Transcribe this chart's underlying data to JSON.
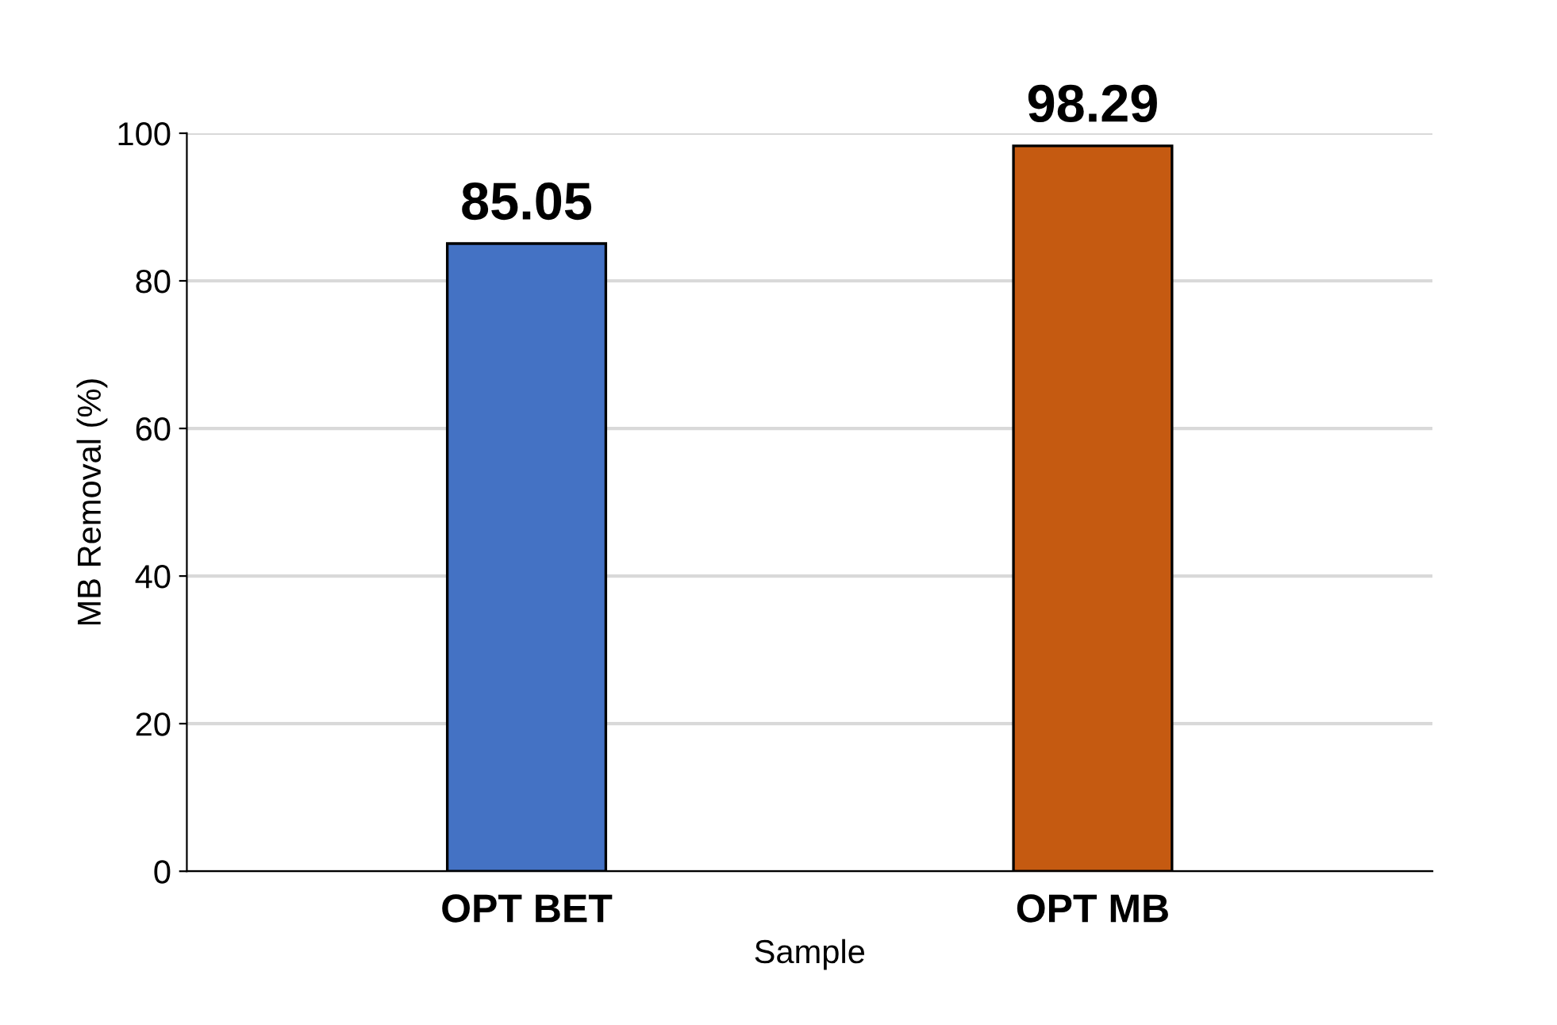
{
  "chart_data": {
    "type": "bar",
    "xlabel": "Sample",
    "ylabel": "MB Removal (%)",
    "categories": [
      "OPT BET",
      "OPT MB"
    ],
    "values": [
      85.05,
      98.29
    ],
    "colors": [
      "#4472c4",
      "#c55a11"
    ],
    "ylim": [
      0,
      100
    ],
    "yticks": [
      0,
      20,
      40,
      60,
      80,
      100
    ],
    "grid": "y",
    "data_labels": true
  }
}
